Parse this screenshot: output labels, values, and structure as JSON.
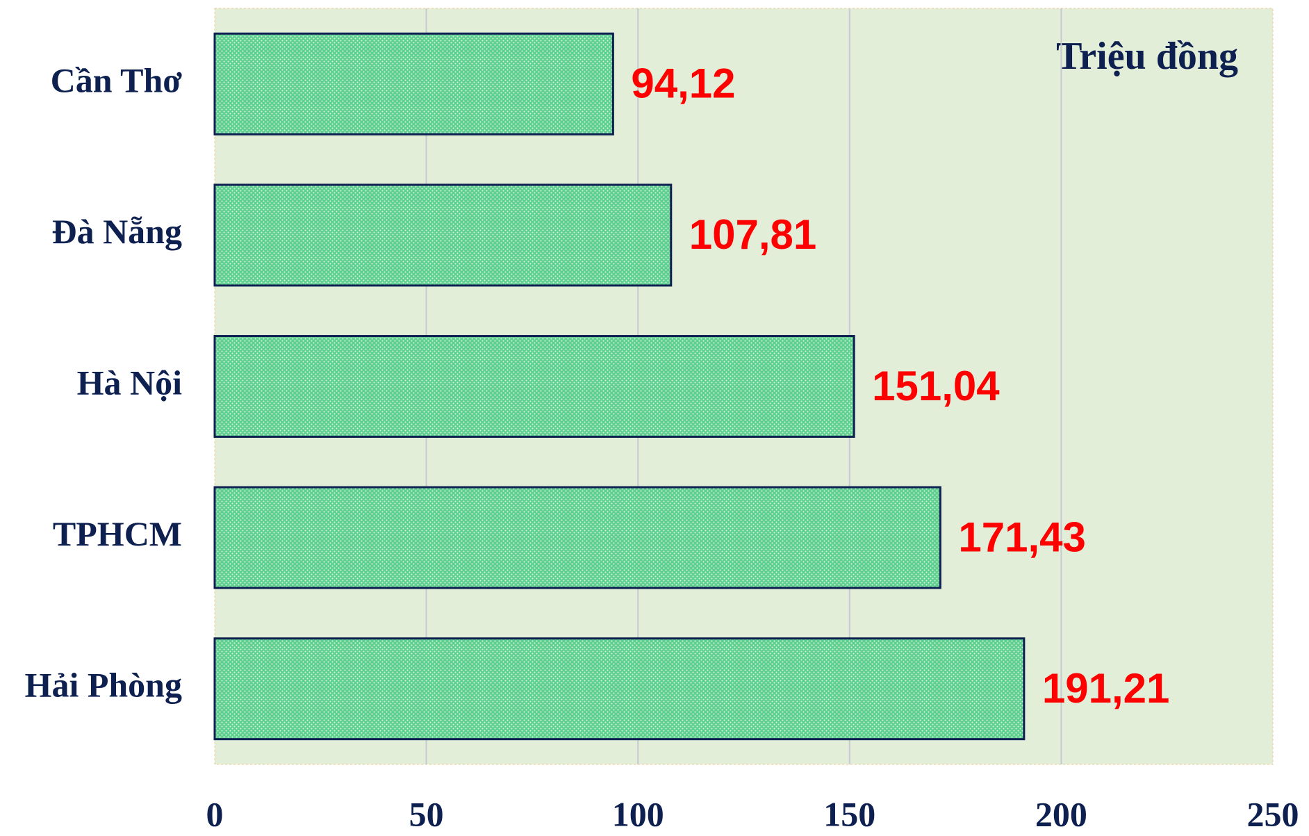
{
  "chart_data": {
    "type": "bar",
    "orientation": "horizontal",
    "annotation": "Triệu đồng",
    "categories": [
      "Cần Thơ",
      "Đà Nẵng",
      "Hà Nội",
      "TPHCM",
      "Hải Phòng"
    ],
    "values": [
      94.12,
      107.81,
      151.04,
      171.43,
      191.21
    ],
    "value_labels": [
      "94,12",
      "107,81",
      "151,04",
      "171,43",
      "191,21"
    ],
    "color": "#5fd08f",
    "xlim": [
      0,
      250
    ],
    "xticks": [
      0,
      50,
      100,
      150,
      200,
      250
    ],
    "grid": true
  }
}
